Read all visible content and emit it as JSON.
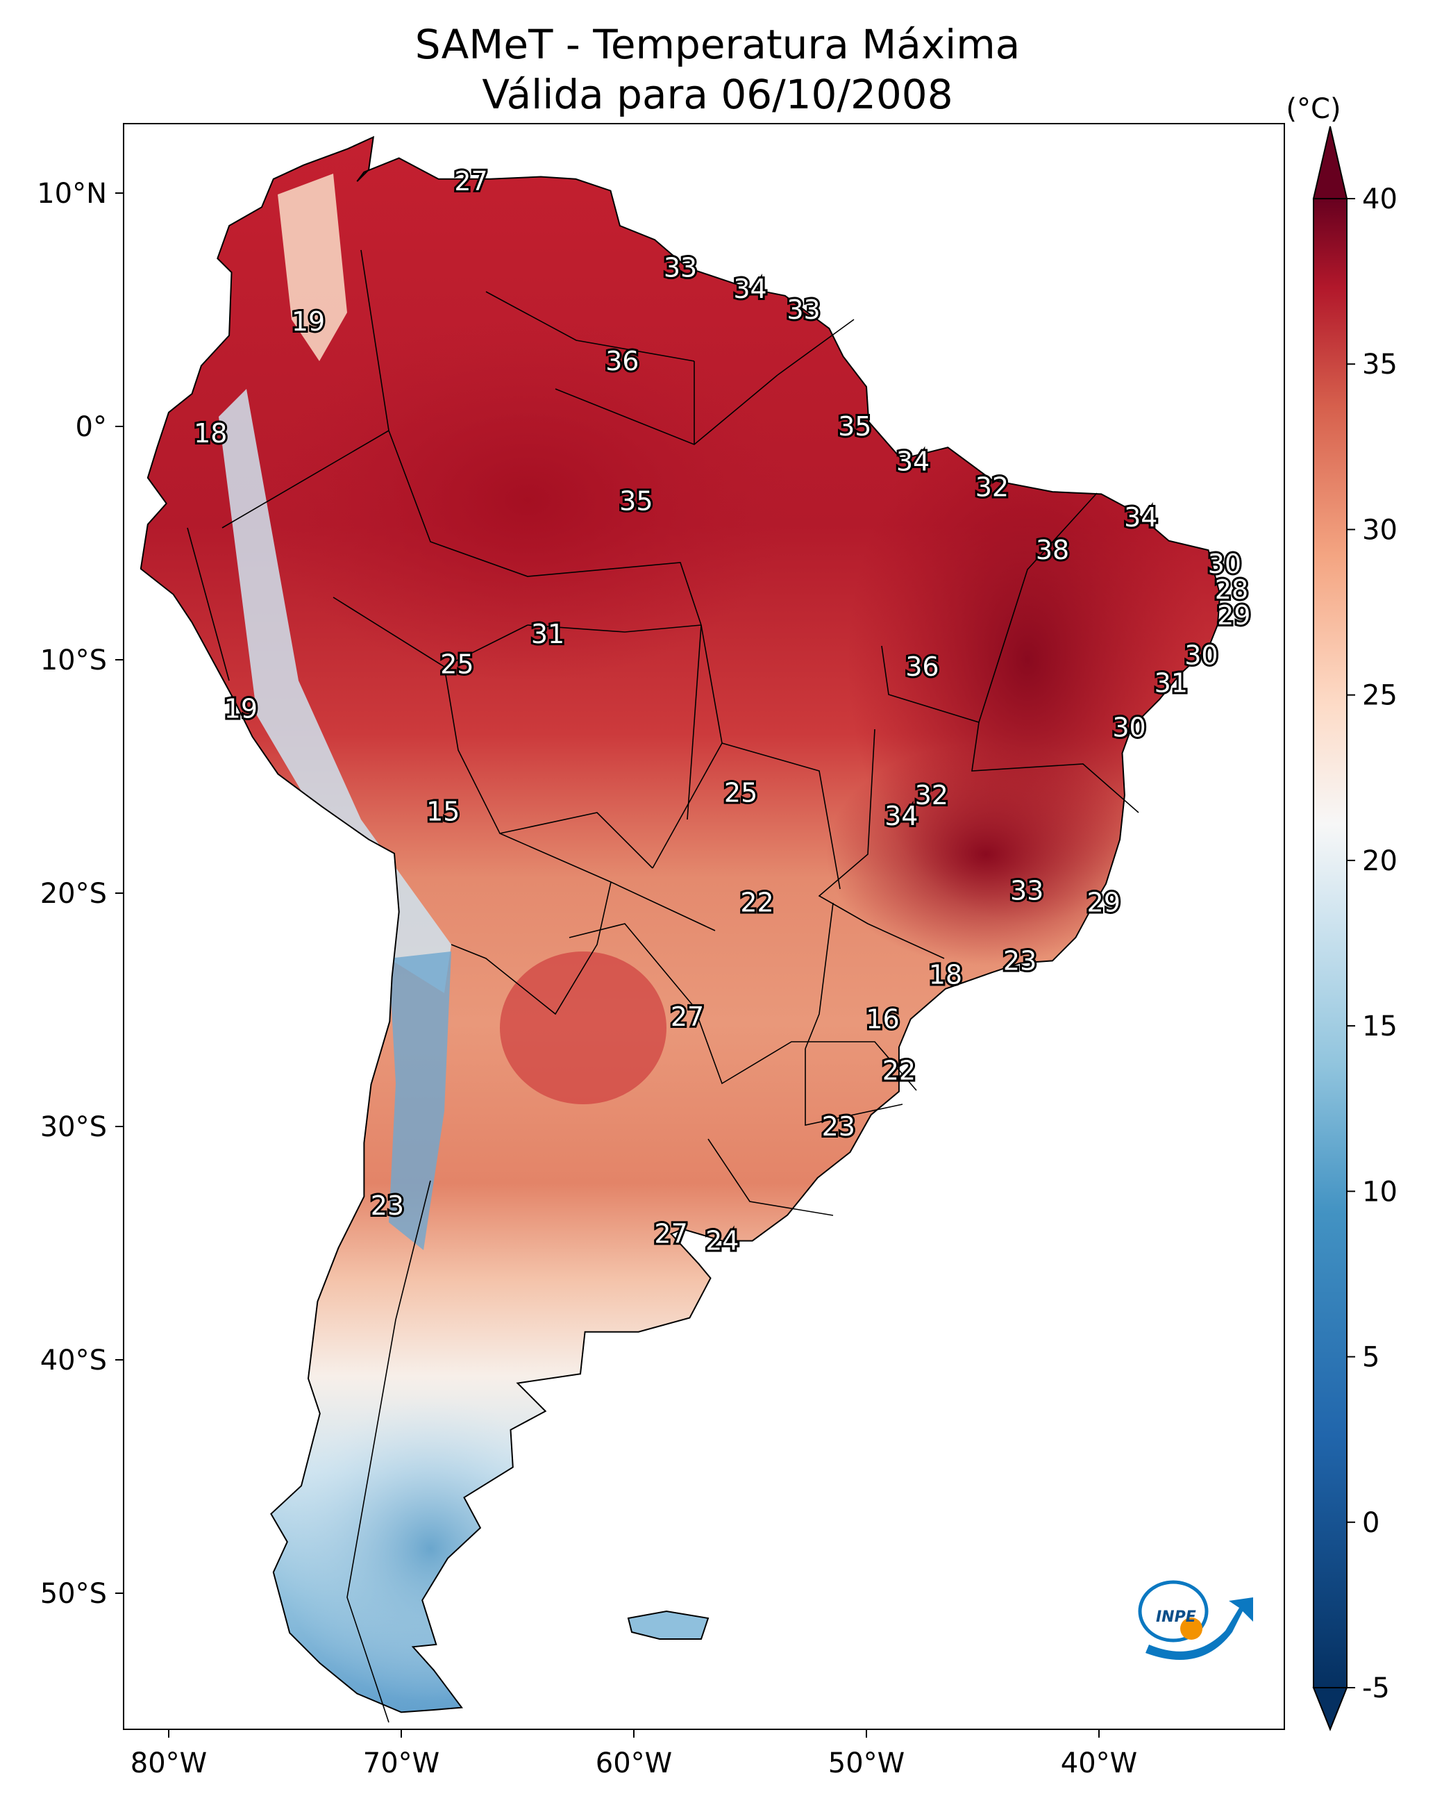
{
  "title": {
    "line1": "SAMeT - Temperatura Máxima",
    "line2": "Válida para 06/10/2008"
  },
  "axes": {
    "lon_labels": [
      "80°W",
      "70°W",
      "60°W",
      "50°W",
      "40°W"
    ],
    "lat_labels": [
      "10°N",
      "0°",
      "10°S",
      "20°S",
      "30°S",
      "40°S",
      "50°S"
    ]
  },
  "colorbar": {
    "unit": "(°C)",
    "ticks": [
      "40",
      "35",
      "30",
      "25",
      "20",
      "15",
      "10",
      "5",
      "0",
      "-5"
    ],
    "min": -5,
    "max": 40,
    "colors": {
      "high": "#67001f",
      "warm": "#d6604d",
      "neutral": "#f7f7f7",
      "cool": "#92c5de",
      "low": "#053061"
    }
  },
  "point_labels": [
    {
      "value": "27",
      "lon": -67.0,
      "lat": 10.5
    },
    {
      "value": "33",
      "lon": -58.0,
      "lat": 6.8
    },
    {
      "value": "34",
      "lon": -55.0,
      "lat": 5.9
    },
    {
      "value": "33",
      "lon": -52.7,
      "lat": 5.0
    },
    {
      "value": "19",
      "lon": -74.0,
      "lat": 4.5
    },
    {
      "value": "36",
      "lon": -60.5,
      "lat": 2.8
    },
    {
      "value": "35",
      "lon": -50.5,
      "lat": 0.0
    },
    {
      "value": "18",
      "lon": -78.2,
      "lat": -0.3
    },
    {
      "value": "34",
      "lon": -48.0,
      "lat": -1.5
    },
    {
      "value": "32",
      "lon": -44.6,
      "lat": -2.6
    },
    {
      "value": "35",
      "lon": -59.9,
      "lat": -3.2
    },
    {
      "value": "34",
      "lon": -38.2,
      "lat": -3.9
    },
    {
      "value": "38",
      "lon": -42.0,
      "lat": -5.3
    },
    {
      "value": "30",
      "lon": -34.6,
      "lat": -5.9
    },
    {
      "value": "28",
      "lon": -34.3,
      "lat": -7.0
    },
    {
      "value": "29",
      "lon": -34.2,
      "lat": -8.1
    },
    {
      "value": "31",
      "lon": -63.7,
      "lat": -8.9
    },
    {
      "value": "30",
      "lon": -35.6,
      "lat": -9.8
    },
    {
      "value": "25",
      "lon": -67.6,
      "lat": -10.2
    },
    {
      "value": "36",
      "lon": -47.6,
      "lat": -10.3
    },
    {
      "value": "31",
      "lon": -36.9,
      "lat": -11.0
    },
    {
      "value": "19",
      "lon": -76.9,
      "lat": -12.1
    },
    {
      "value": "30",
      "lon": -38.7,
      "lat": -12.9
    },
    {
      "value": "25",
      "lon": -55.4,
      "lat": -15.7
    },
    {
      "value": "32",
      "lon": -47.2,
      "lat": -15.8
    },
    {
      "value": "15",
      "lon": -68.2,
      "lat": -16.5
    },
    {
      "value": "34",
      "lon": -48.5,
      "lat": -16.7
    },
    {
      "value": "33",
      "lon": -43.1,
      "lat": -19.9
    },
    {
      "value": "22",
      "lon": -54.7,
      "lat": -20.4
    },
    {
      "value": "29",
      "lon": -39.8,
      "lat": -20.4
    },
    {
      "value": "23",
      "lon": -43.4,
      "lat": -22.9
    },
    {
      "value": "18",
      "lon": -46.6,
      "lat": -23.5
    },
    {
      "value": "27",
      "lon": -57.7,
      "lat": -25.3
    },
    {
      "value": "16",
      "lon": -49.3,
      "lat": -25.4
    },
    {
      "value": "22",
      "lon": -48.6,
      "lat": -27.6
    },
    {
      "value": "23",
      "lon": -51.2,
      "lat": -30.0
    },
    {
      "value": "23",
      "lon": -70.6,
      "lat": -33.4
    },
    {
      "value": "27",
      "lon": -58.4,
      "lat": -34.6
    },
    {
      "value": "24",
      "lon": -56.2,
      "lat": -34.9
    }
  ],
  "logo": {
    "text": "INPE"
  }
}
